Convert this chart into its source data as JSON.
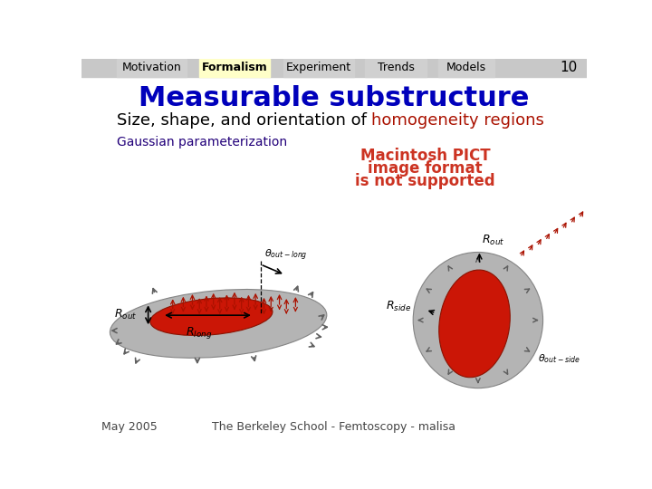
{
  "nav_items": [
    "Motivation",
    "Formalism",
    "Experiment",
    "Trends",
    "Models"
  ],
  "nav_active": "Formalism",
  "nav_active_bg": "#ffffc8",
  "nav_inactive_bg": "#d0d0d0",
  "slide_number": "10",
  "title": "Measurable substructure",
  "title_color": "#0000bb",
  "subtitle_black": "Size, shape, and orientation of ",
  "subtitle_red": "homogeneity regions",
  "subtitle_color_black": "#000000",
  "subtitle_color_red": "#aa1100",
  "gaussian_label": "Gaussian parameterization",
  "gaussian_label_color": "#22007a",
  "pict_lines": [
    "Macintosh PICT",
    "image format",
    "is not supported"
  ],
  "pict_color": "#cc3322",
  "footer_left": "May 2005",
  "footer_center": "The Berkeley School - Femtoscopy - malisa",
  "footer_color": "#444444",
  "bg_color": "#ffffff",
  "nav_bar_bg": "#c8c8c8",
  "disk_gray": "#b0b0b0",
  "disk_gray_edge": "#808080",
  "disk_red": "#cc1100",
  "disk_red_edge": "#881100",
  "arrow_gray": "#606060",
  "arrow_red": "#aa1100",
  "label_color": "#000000"
}
